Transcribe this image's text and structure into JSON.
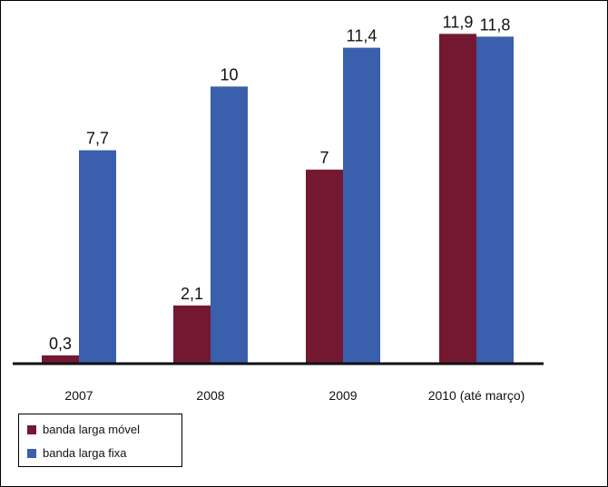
{
  "chart_data": {
    "type": "bar",
    "categories": [
      "2007",
      "2008",
      "2009",
      "2010 (até março)"
    ],
    "series": [
      {
        "name": "banda larga móvel",
        "color": "#741832",
        "values": [
          0.3,
          2.1,
          7,
          11.9
        ],
        "labels": [
          "0,3",
          "2,1",
          "7",
          "11,9"
        ]
      },
      {
        "name": "banda larga fixa",
        "color": "#3a5fac",
        "values": [
          7.7,
          10,
          11.4,
          11.8
        ],
        "labels": [
          "7,7",
          "10",
          "11,4",
          "11,8"
        ]
      }
    ],
    "ylim": [
      0,
      12.5
    ],
    "grid": false,
    "legend_position": "bottom-left"
  }
}
